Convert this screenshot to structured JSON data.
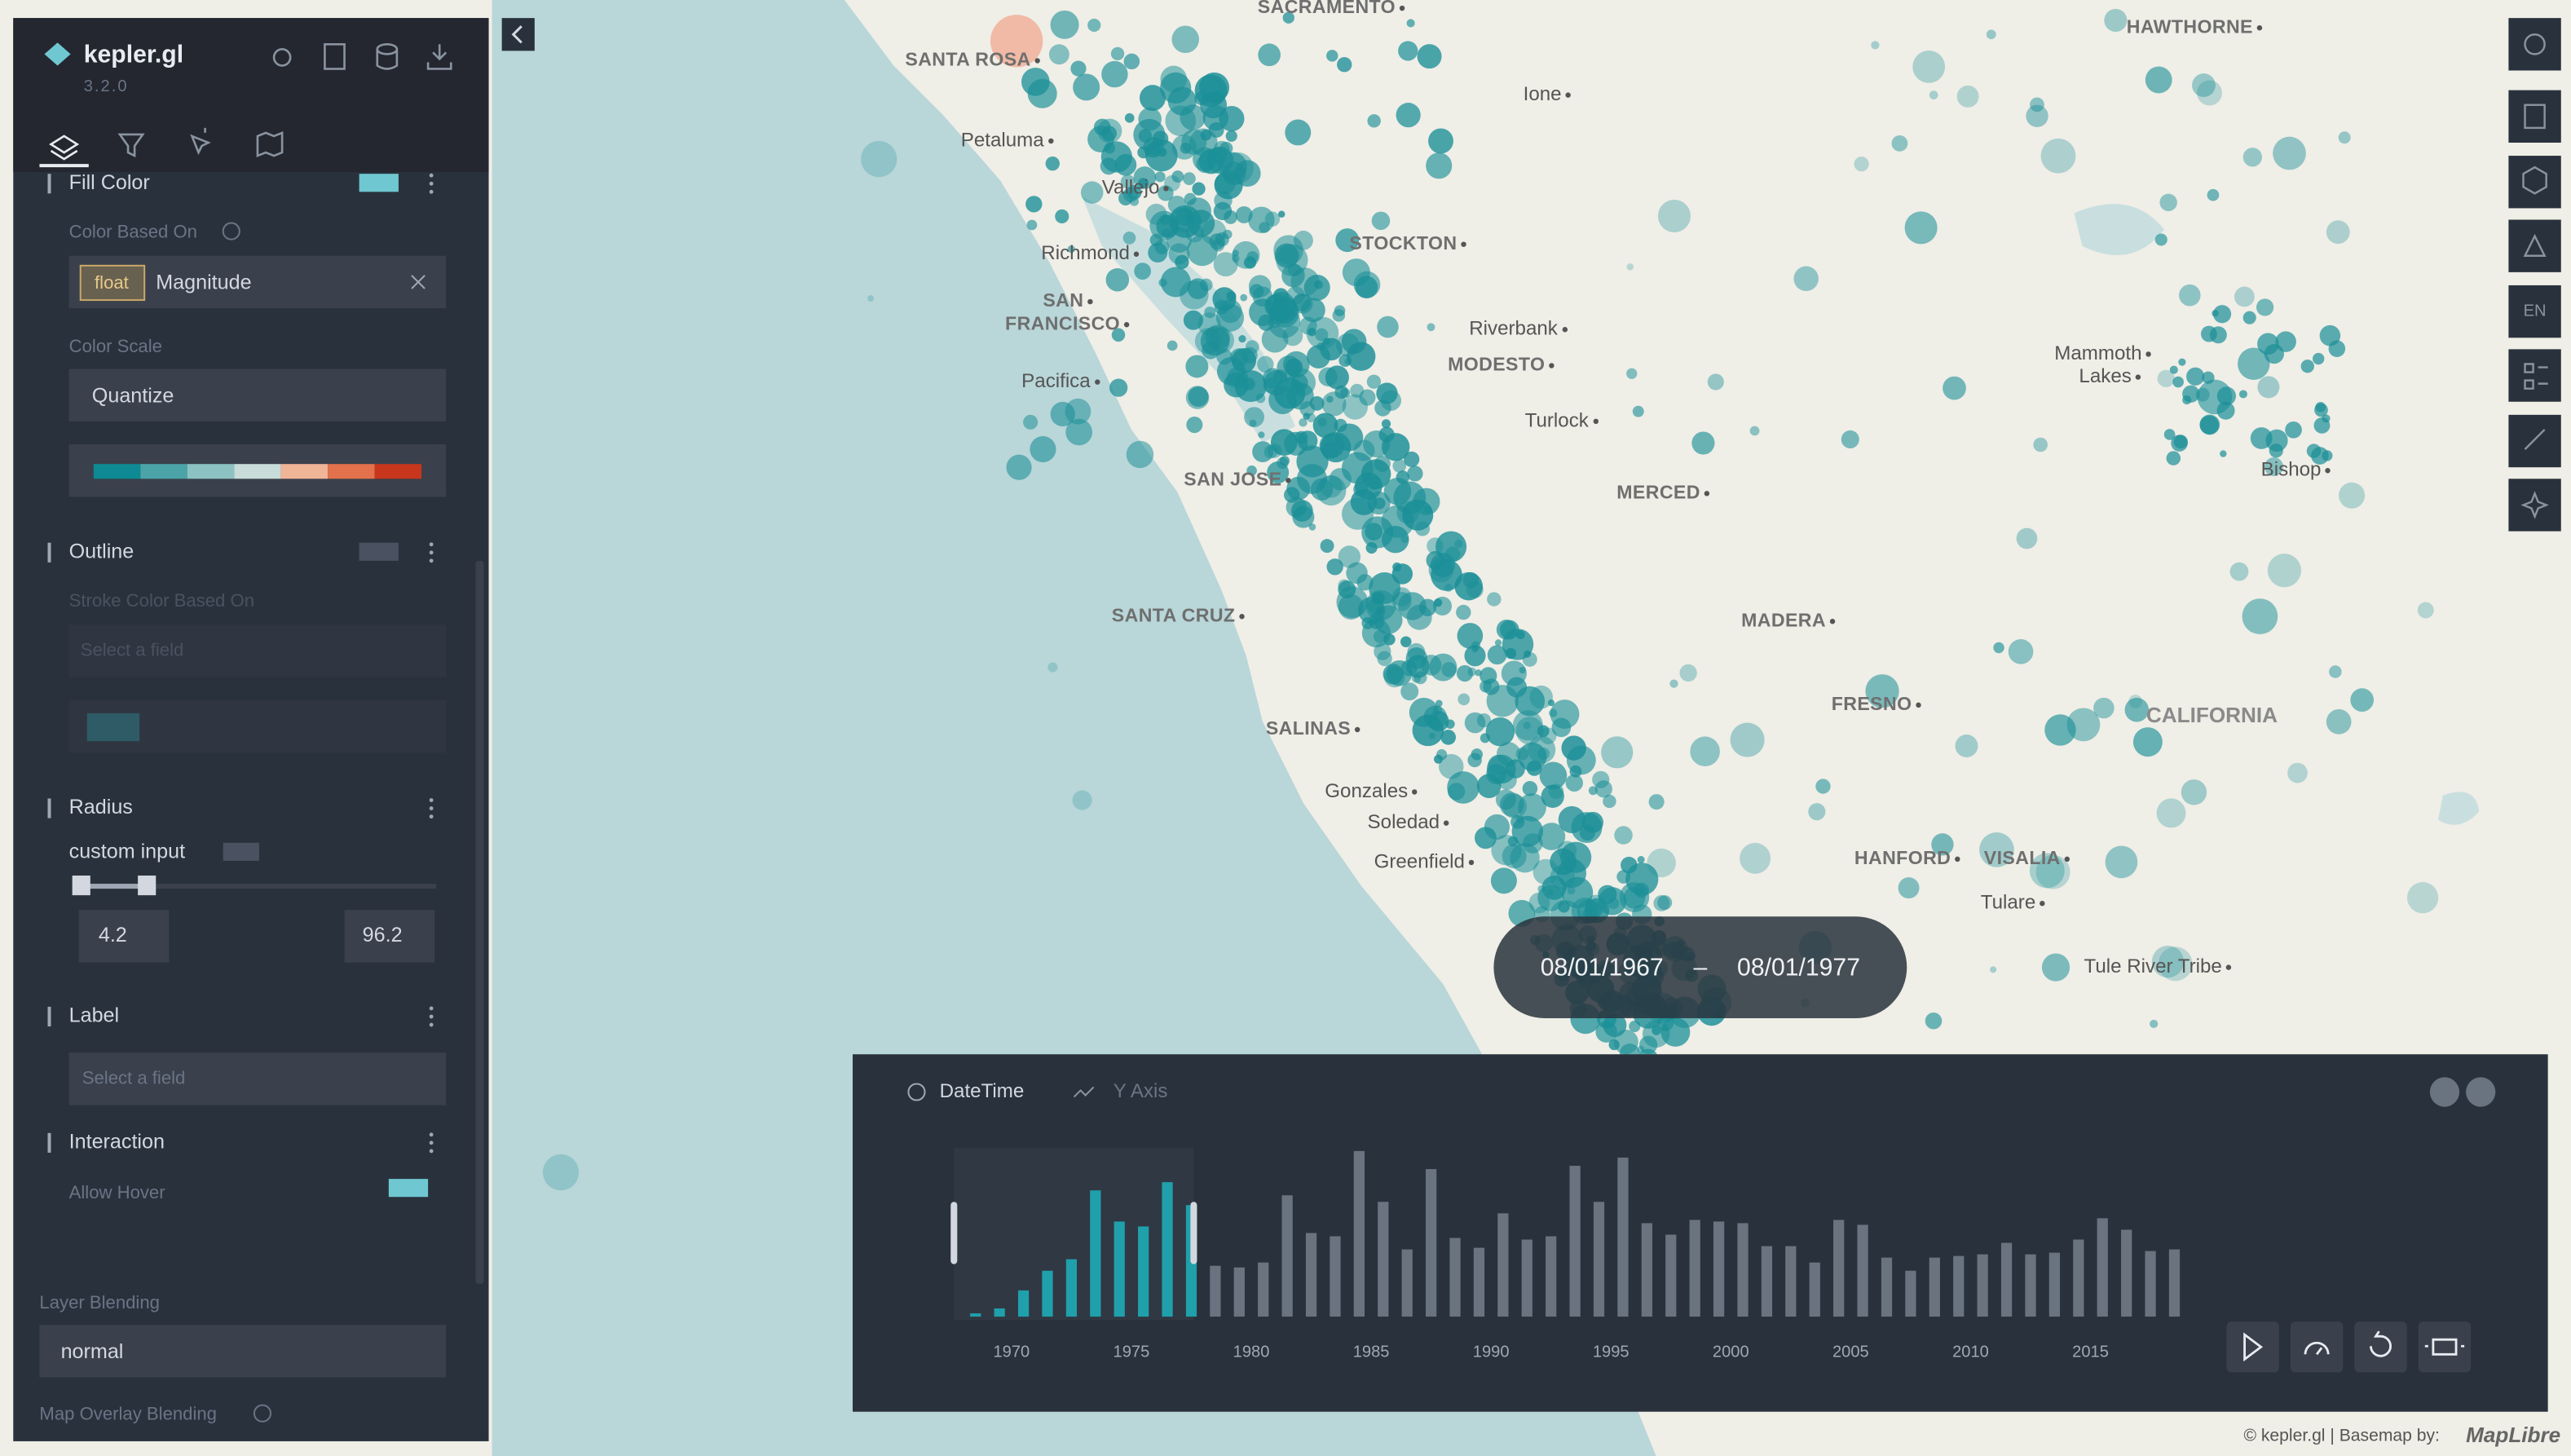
{
  "app": {
    "title": "kepler.gl",
    "version": "3.2.0"
  },
  "layer_config": {
    "fill_color": {
      "title": "Fill Color",
      "color_based_on_label": "Color Based On",
      "field_type": "float",
      "field": "Magnitude",
      "color_scale_label": "Color Scale",
      "color_scale": "Quantize",
      "palette": [
        "#0d8a93",
        "#4ba4a8",
        "#8cc3c2",
        "#c9dcd9",
        "#f0b496",
        "#e3714c",
        "#c7361d"
      ]
    },
    "outline": {
      "title": "Outline",
      "stroke_color_label": "Stroke Color Based On",
      "placeholder": "Select a field"
    },
    "radius": {
      "title": "Radius",
      "custom_input": "custom input",
      "range": [
        4.2,
        96.2
      ]
    },
    "label": {
      "title": "Label",
      "placeholder": "Select a field"
    },
    "interaction": {
      "title": "Interaction",
      "allow_hover": "Allow Hover"
    },
    "layer_blending": {
      "title": "Layer Blending",
      "value": "normal"
    },
    "map_overlay_blending": {
      "title": "Map Overlay Blending"
    }
  },
  "map": {
    "labels": [
      "SACRAMENTO",
      "SANTA ROSA",
      "Petaluma",
      "Vallejo",
      "Richmond",
      "SAN",
      "FRANCISCO",
      "Pacifica",
      "STOCKTON",
      "Ione",
      "Riverbank",
      "MODESTO",
      "Turlock",
      "MERCED",
      "SAN JOSE",
      "SANTA CRUZ",
      "SALINAS",
      "Gonzales",
      "Soledad",
      "Greenfield",
      "MADERA",
      "FRESNO",
      "HANFORD",
      "VISALIA",
      "Tulare",
      "Tule River Tribe",
      "CALIFORNIA",
      "HAWTHORNE",
      "Mammoth",
      "Lakes",
      "Bishop"
    ],
    "language": "EN",
    "attribution": "© kepler.gl | Basemap by:",
    "basemap": "MapLibre"
  },
  "time_range": {
    "start": "08/01/1967",
    "separator": "–",
    "end": "08/01/1977"
  },
  "time_panel": {
    "tabs": [
      "DateTime",
      "Y Axis"
    ]
  },
  "chart_data": {
    "type": "histogram",
    "bins": [
      1968,
      1969,
      1970,
      1971,
      1972,
      1973,
      1974,
      1975,
      1976,
      1977,
      1978,
      1979,
      1980,
      1981,
      1982,
      1983,
      1984,
      1985,
      1986,
      1987,
      1988,
      1989,
      1990,
      1991,
      1992,
      1993,
      1994,
      1995,
      1996,
      1997,
      1998,
      1999,
      2000,
      2001,
      2002,
      2003,
      2004,
      2005,
      2006,
      2007,
      2008,
      2009,
      2010,
      2011,
      2012,
      2013,
      2014,
      2015,
      2016,
      2017,
      2018,
      2019
    ],
    "values": [
      2,
      5,
      16,
      28,
      35,
      77,
      58,
      55,
      82,
      68,
      31,
      30,
      33,
      74,
      51,
      49,
      101,
      70,
      41,
      90,
      48,
      42,
      63,
      47,
      49,
      92,
      70,
      97,
      57,
      50,
      59,
      58,
      57,
      43,
      43,
      33,
      59,
      56,
      36,
      28,
      36,
      37,
      38,
      45,
      38,
      39,
      47,
      60,
      53,
      40,
      41
    ],
    "color": "#1fa0ab",
    "inactive_color": "#6a7380",
    "selection": [
      1967.6,
      1977.6
    ],
    "xlim": [
      1967,
      2019
    ],
    "xticks": [
      1970,
      1975,
      1980,
      1985,
      1990,
      1995,
      2000,
      2005,
      2010,
      2015
    ],
    "ylim": [
      0,
      105
    ]
  }
}
